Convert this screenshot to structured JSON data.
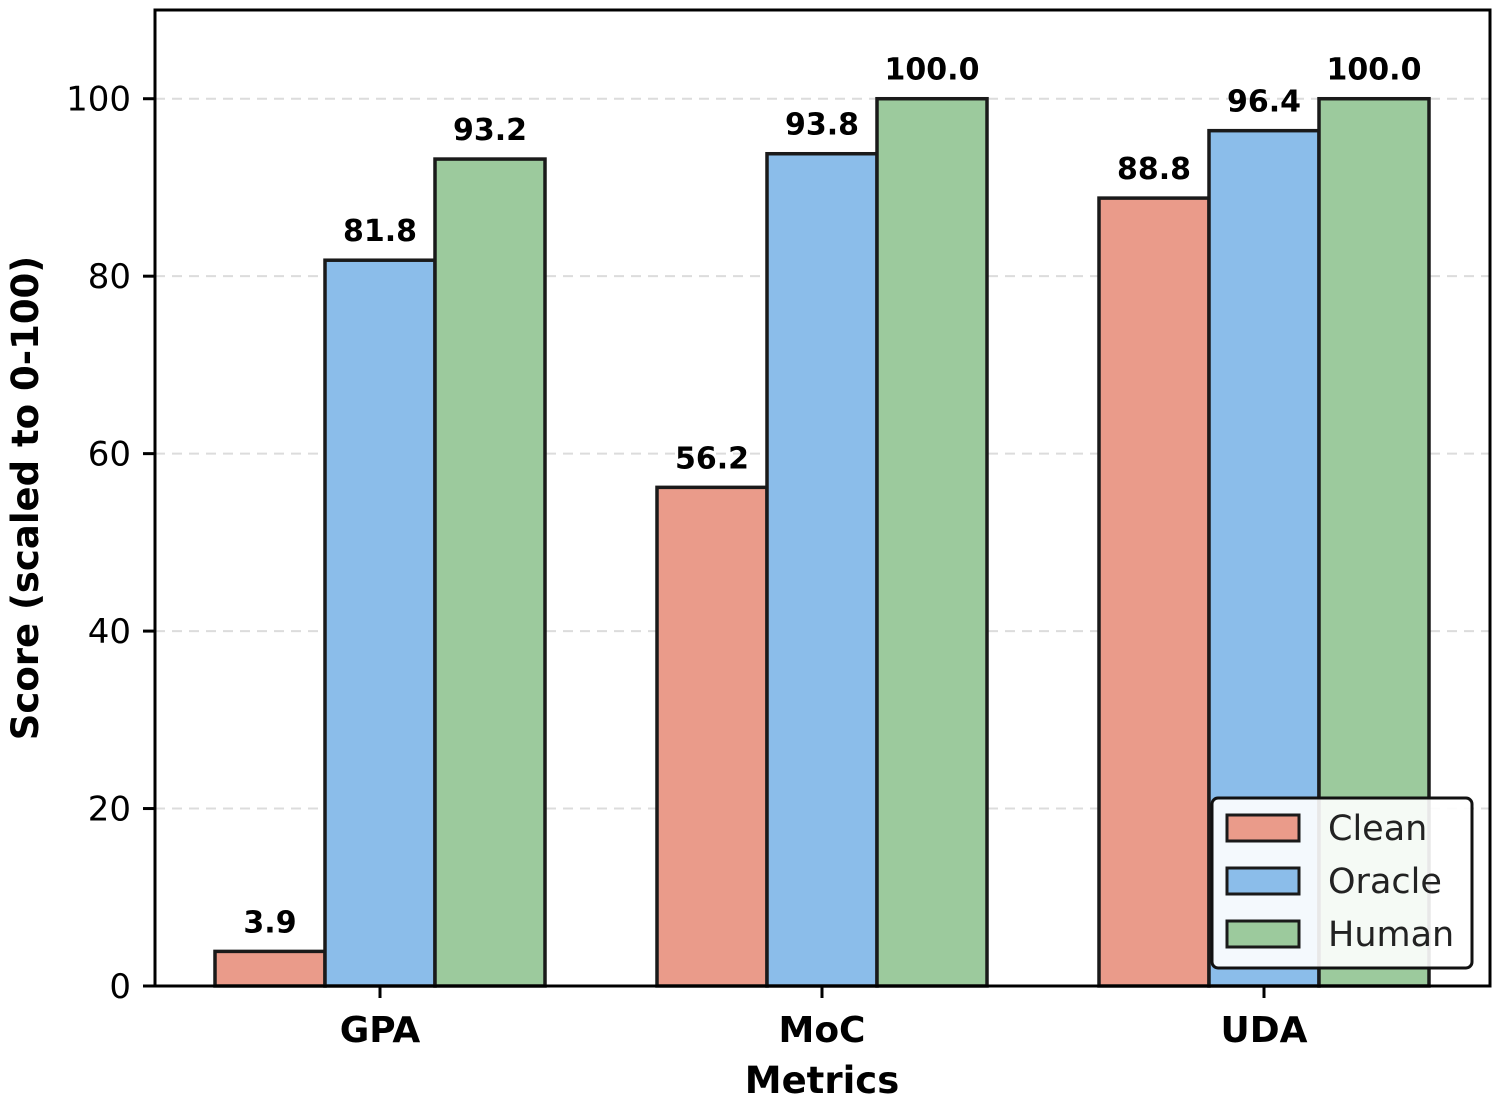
{
  "chart_data": {
    "type": "bar",
    "categories": [
      "GPA",
      "MoC",
      "UDA"
    ],
    "series": [
      {
        "name": "Clean",
        "values": [
          3.9,
          56.2,
          88.8
        ],
        "color": "#EA9B8A"
      },
      {
        "name": "Oracle",
        "values": [
          81.8,
          93.8,
          96.4
        ],
        "color": "#8BBDEA"
      },
      {
        "name": "Human",
        "values": [
          93.2,
          100.0,
          100.0
        ],
        "color": "#9CCA9D"
      }
    ],
    "title": "",
    "xlabel": "Metrics",
    "ylabel": "Score (scaled to 0-100)",
    "ylim": [
      0,
      110
    ],
    "yticks": [
      0,
      20,
      40,
      60,
      80,
      100
    ],
    "grid": "horizontal-dashed",
    "legend_position": "bottom-right",
    "value_label_format": "one-decimal"
  }
}
